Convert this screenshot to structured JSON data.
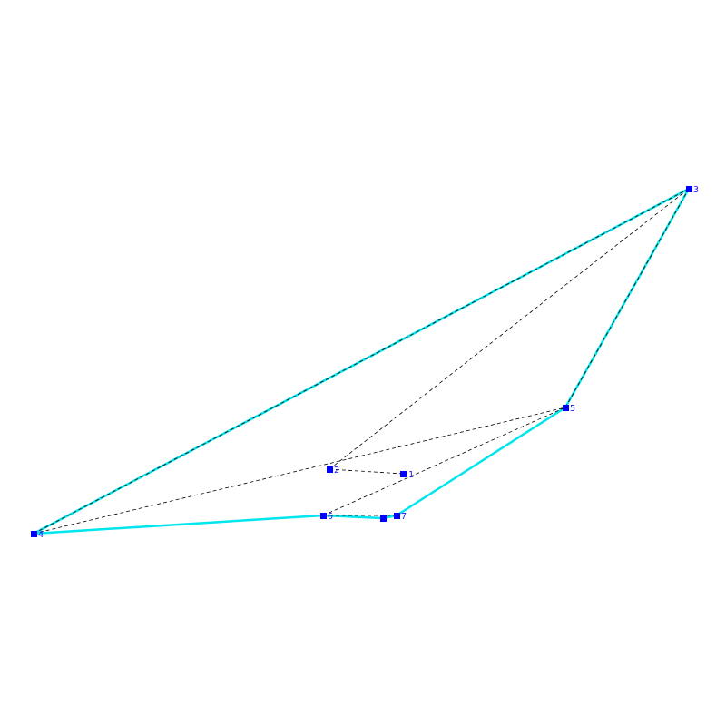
{
  "nodes": [
    {
      "label": "1"
    },
    {
      "label": "2"
    },
    {
      "label": "3"
    },
    {
      "label": "4"
    },
    {
      "label": "5"
    },
    {
      "label": "6"
    },
    {
      "label": "7"
    }
  ]
}
